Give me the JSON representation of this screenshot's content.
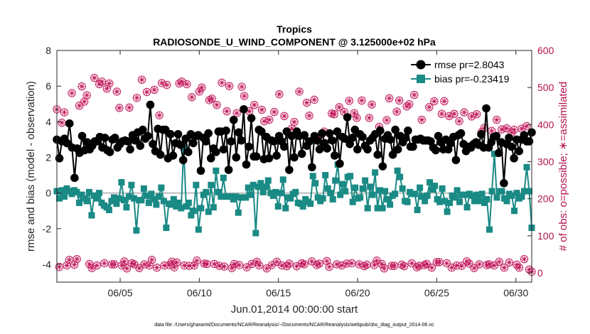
{
  "chart_data": {
    "type": "line",
    "title": "Tropics",
    "subtitle": "RADIOSONDE_U_WIND_COMPONENT @ 3.125000e+02 hPa",
    "xlabel": "Jun.01,2014 00:00:00 start",
    "ylabel": "rmse and bias (model - observation)",
    "ylabel_right": "# of obs: o=possible; ∗=assimilated",
    "xlim": [
      1,
      31
    ],
    "ylim": [
      -5,
      8
    ],
    "ylim_right": [
      -25,
      600
    ],
    "x_ticks": [
      5,
      10,
      15,
      20,
      25,
      30
    ],
    "x_tick_labels": [
      "06/05",
      "06/10",
      "06/15",
      "06/20",
      "06/25",
      "06/30"
    ],
    "y_ticks": [
      -4,
      -2,
      0,
      2,
      4,
      6,
      8
    ],
    "y_tick_labels": [
      "-4",
      "-2",
      "0",
      "2",
      "4",
      "6",
      "8"
    ],
    "y_ticks_right": [
      0,
      100,
      200,
      300,
      400,
      500,
      600
    ],
    "y_tick_labels_right": [
      "0",
      "100",
      "200",
      "300",
      "400",
      "500",
      "600"
    ],
    "footnote": "data file: /Users/gharamti/Documents/NCAR/Reanalysis/~/Documents/NCAR/Reanalysis/webpub/obs_diag_output_2014-06.nc",
    "legend": [
      {
        "label": "rmse pr=2.8043",
        "color": "#000000"
      },
      {
        "label": "bias pr=-0.23419",
        "color": "#1a8a85"
      }
    ],
    "colors": {
      "rmse": "#000000",
      "bias": "#1a8a85",
      "obs": "#c2185b",
      "zero_line": "#bdbdbd"
    },
    "series": [
      {
        "name": "rmse",
        "values": [
          3.0,
          1.95,
          2.9,
          3.05,
          2.8,
          3.9,
          2.55,
          0.85,
          2.5,
          2.25,
          3.2,
          2.4,
          2.85,
          2.45,
          2.65,
          2.9,
          2.9,
          3.15,
          2.55,
          3.1,
          2.4,
          2.3,
          3.0,
          3.1,
          2.55,
          2.75,
          2.9,
          2.95,
          2.9,
          2.45,
          3.25,
          2.95,
          3.4,
          2.65,
          3.55,
          3.05,
          3.2,
          4.95,
          2.75,
          2.35,
          3.6,
          2.15,
          3.55,
          3.55,
          1.95,
          3.3,
          2.1,
          2.8,
          3.3,
          2.7,
          1.85,
          3.05,
          2.3,
          3.3,
          2.8,
          3.2,
          3.25,
          1.25,
          3.1,
          2.9,
          3.35,
          1.95,
          2.5,
          2.3,
          3.45,
          3.45,
          2.45,
          3.5,
          1.3,
          2.9,
          4.1,
          2.0,
          3.4,
          2.95,
          4.7,
          1.6,
          2.6,
          4.2,
          2.05,
          2.05,
          3.55,
          3.45,
          1.9,
          3.15,
          1.95,
          2.95,
          2.9,
          2.1,
          3.2,
          2.9,
          2.6,
          3.45,
          1.3,
          3.2,
          2.0,
          3.45,
          3.2,
          2.2,
          3.25,
          2.65,
          2.9,
          1.45,
          3.2,
          2.95,
          2.45,
          3.35,
          2.8,
          2.5,
          3.35,
          2.95,
          2.1,
          3.45,
          1.65,
          3.15,
          3.05,
          4.25,
          2.75,
          3.1,
          3.55,
          2.45,
          3.3,
          3.15,
          2.65,
          2.45,
          2.95,
          3.1,
          3.3,
          2.15,
          3.5,
          1.5,
          3.05,
          3.25,
          3.0,
          2.15,
          3.55,
          2.45,
          3.2,
          2.85,
          3.1,
          3.5,
          2.6,
          2.6,
          3.0,
          3.0,
          3.05,
          2.95,
          2.95,
          2.95,
          2.9,
          2.55,
          2.4,
          3.2,
          2.85,
          2.45,
          3.0,
          2.45,
          2.8,
          3.15,
          1.85,
          3.25,
          3.35,
          2.75,
          2.35,
          2.6,
          2.55,
          2.75,
          2.85,
          2.7,
          3.3,
          2.55,
          4.75,
          2.55,
          2.85,
          3.15,
          3.2,
          2.25,
          2.85,
          0.55,
          2.75,
          3.1,
          2.6,
          1.95,
          3.0,
          2.35,
          3.0,
          3.25,
          2.9,
          2.9,
          3.4
        ]
      },
      {
        "name": "bias",
        "values": [
          0.1,
          -0.3,
          0.15,
          -0.2,
          0.25,
          0.1,
          -0.05,
          0.15,
          0.05,
          -0.55,
          -0.1,
          -0.3,
          -0.45,
          0.05,
          -1.25,
          -0.15,
          -0.3,
          0.0,
          -0.55,
          -0.7,
          -0.8,
          -0.95,
          -0.45,
          -0.25,
          -0.6,
          -0.3,
          0.6,
          -0.4,
          -0.8,
          -0.2,
          0.45,
          -0.3,
          -2.1,
          -0.4,
          -0.4,
          0.25,
          -0.15,
          -0.55,
          -0.05,
          -0.35,
          -0.65,
          -0.2,
          0.3,
          -0.45,
          -1.95,
          -0.6,
          -0.65,
          -0.35,
          -0.75,
          -0.55,
          -0.85,
          2.55,
          -0.75,
          -0.55,
          -1.25,
          -1.0,
          0.45,
          -2.05,
          -0.85,
          -0.1,
          0.05,
          -1.05,
          0.45,
          -0.8,
          1.25,
          0.05,
          -0.2,
          0.85,
          -0.2,
          -0.2,
          -0.2,
          -0.35,
          -0.2,
          -1.1,
          -0.25,
          -0.25,
          -0.25,
          0.3,
          -0.1,
          0.45,
          -2.25,
          0.35,
          0.55,
          0.05,
          0.35,
          0.7,
          0.0,
          -0.15,
          0.05,
          -0.75,
          0.0,
          0.75,
          -0.85,
          -0.25,
          -0.3,
          -0.05,
          0.05,
          -0.55,
          -0.6,
          -0.75,
          -0.35,
          -0.5,
          -0.6,
          0.95,
          0.55,
          -0.25,
          -0.45,
          -0.3,
          1.0,
          0.25,
          0.0,
          -0.35,
          0.7,
          1.6,
          -0.1,
          0.5,
          0.1,
          0.9,
          0.95,
          -0.5,
          0.3,
          -0.3,
          -0.25,
          0.25,
          0.7,
          -0.85,
          0.35,
          -0.1,
          1.15,
          -0.85,
          0.15,
          -0.85,
          0.1,
          -0.35,
          -0.65,
          -0.15,
          -0.05,
          1.25,
          0.9,
          0.25,
          -0.45,
          -0.5,
          0.05,
          -0.05,
          -0.05,
          -0.95,
          0.3,
          -0.2,
          -0.45,
          -0.15,
          0.6,
          0.2,
          0.4,
          -0.35,
          -0.5,
          0.25,
          -0.45,
          -1.05,
          -0.55,
          -0.15,
          -0.25,
          0.15,
          -0.5,
          -0.1,
          -0.1,
          -0.8,
          -0.05,
          -0.15,
          -0.45,
          -0.1,
          -0.45,
          -0.05,
          -0.55,
          -0.35,
          -2.05,
          0.1,
          2.2,
          -0.25,
          0.1,
          0.1,
          -0.3,
          -0.45,
          -0.05,
          -0.15,
          -1.0,
          0.0,
          -0.3,
          -0.2,
          0.1,
          1.45,
          0.1,
          -1.95
        ]
      },
      {
        "name": "obs_possible",
        "values": [
          441,
          16,
          405,
          433,
          20,
          35,
          485,
          22,
          37,
          451,
          503,
          462,
          479,
          24,
          13,
          526,
          20,
          509,
          516,
          26,
          497,
          511,
          23,
          23,
          489,
          445,
          20,
          31,
          12,
          446,
          26,
          23,
          472,
          13,
          521,
          23,
          488,
          20,
          35,
          494,
          14,
          425,
          512,
          20,
          507,
          21,
          30,
          15,
          28,
          511,
          516,
          20,
          509,
          19,
          474,
          20,
          33,
          489,
          500,
          25,
          24,
          466,
          470,
          24,
          453,
          19,
          513,
          17,
          436,
          504,
          13,
          24,
          431,
          21,
          502,
          477,
          15,
          436,
          24,
          453,
          30,
          20,
          440,
          409,
          12,
          413,
          21,
          434,
          30,
          482,
          20,
          423,
          18,
          25,
          389,
          407,
          18,
          489,
          26,
          23,
          459,
          424,
          31,
          467,
          21,
          25,
          374,
          381,
          32,
          16,
          430,
          428,
          23,
          447,
          20,
          434,
          25,
          464,
          26,
          431,
          418,
          23,
          465,
          18,
          22,
          418,
          454,
          21,
          33,
          394,
          24,
          12,
          412,
          471,
          19,
          19,
          435,
          465,
          22,
          18,
          449,
          455,
          26,
          480,
          15,
          19,
          413,
          21,
          24,
          447,
          14,
          463,
          29,
          29,
          429,
          463,
          26,
          423,
          14,
          429,
          20,
          409,
          19,
          433,
          31,
          25,
          422,
          13,
          428,
          23,
          380,
          391,
          21,
          23,
          383,
          20,
          413,
          30,
          387,
          14,
          390,
          28,
          379,
          386,
          22,
          14,
          389,
          37,
          396,
          9,
          3
        ]
      },
      {
        "name": "obs_assimilated",
        "values": [
          441,
          16,
          405,
          433,
          20,
          35,
          485,
          22,
          37,
          451,
          503,
          462,
          479,
          24,
          13,
          526,
          20,
          509,
          516,
          26,
          497,
          511,
          23,
          23,
          489,
          445,
          20,
          31,
          12,
          446,
          26,
          23,
          472,
          13,
          521,
          23,
          488,
          20,
          35,
          494,
          14,
          425,
          512,
          20,
          507,
          21,
          30,
          15,
          28,
          511,
          516,
          20,
          509,
          19,
          474,
          20,
          33,
          489,
          500,
          25,
          24,
          466,
          470,
          24,
          453,
          19,
          513,
          17,
          436,
          504,
          13,
          24,
          431,
          21,
          502,
          477,
          15,
          436,
          24,
          453,
          30,
          20,
          440,
          409,
          12,
          413,
          21,
          434,
          30,
          482,
          20,
          423,
          18,
          25,
          389,
          407,
          18,
          489,
          26,
          23,
          459,
          424,
          31,
          467,
          21,
          25,
          374,
          381,
          32,
          16,
          430,
          428,
          23,
          447,
          20,
          434,
          25,
          464,
          26,
          431,
          418,
          23,
          465,
          18,
          22,
          418,
          454,
          21,
          33,
          394,
          24,
          12,
          412,
          471,
          19,
          19,
          435,
          465,
          22,
          18,
          449,
          455,
          26,
          480,
          15,
          19,
          413,
          21,
          24,
          447,
          14,
          463,
          29,
          29,
          429,
          463,
          26,
          423,
          14,
          429,
          20,
          409,
          19,
          433,
          31,
          25,
          422,
          13,
          428,
          23,
          380,
          391,
          21,
          23,
          383,
          20,
          413,
          30,
          387,
          14,
          390,
          28,
          379,
          386,
          22,
          14,
          389,
          37,
          396,
          9,
          3
        ]
      }
    ]
  }
}
